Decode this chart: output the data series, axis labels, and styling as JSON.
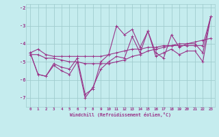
{
  "xlabel": "Windchill (Refroidissement éolien,°C)",
  "background_color": "#c5ecee",
  "grid_color": "#a0ccce",
  "line_color": "#993388",
  "xlim": [
    -0.5,
    23.5
  ],
  "ylim": [
    -7.5,
    -1.8
  ],
  "yticks": [
    -7,
    -6,
    -5,
    -4,
    -3,
    -2
  ],
  "xticks": [
    0,
    1,
    2,
    3,
    4,
    5,
    6,
    7,
    8,
    9,
    10,
    11,
    12,
    13,
    14,
    15,
    16,
    17,
    18,
    19,
    20,
    21,
    22,
    23
  ],
  "series": [
    [
      -4.5,
      -4.3,
      -4.6,
      -4.7,
      -4.7,
      -4.7,
      -4.7,
      -4.7,
      -4.7,
      -4.7,
      -4.6,
      -4.5,
      -4.4,
      -4.3,
      -4.3,
      -4.2,
      -4.2,
      -4.1,
      -4.1,
      -4.1,
      -4.1,
      -4.1,
      -4.1,
      -2.5
    ],
    [
      -4.5,
      -5.7,
      -5.8,
      -5.1,
      -5.3,
      -5.4,
      -4.8,
      -6.8,
      -6.5,
      -5.0,
      -4.6,
      -3.0,
      -3.5,
      -3.2,
      -4.2,
      -3.3,
      -4.5,
      -4.8,
      -3.5,
      -4.2,
      -4.0,
      -4.0,
      -4.5,
      -2.5
    ],
    [
      -4.5,
      -5.7,
      -5.8,
      -5.2,
      -5.5,
      -5.7,
      -5.0,
      -7.0,
      -6.4,
      -5.4,
      -5.0,
      -4.7,
      -4.8,
      -3.6,
      -4.5,
      -3.3,
      -4.7,
      -4.5,
      -4.3,
      -4.6,
      -4.4,
      -4.4,
      -5.0,
      -2.5
    ],
    [
      -4.6,
      -4.6,
      -4.8,
      -4.8,
      -4.9,
      -5.0,
      -5.0,
      -5.1,
      -5.1,
      -5.1,
      -5.1,
      -5.0,
      -4.9,
      -4.7,
      -4.6,
      -4.4,
      -4.3,
      -4.2,
      -4.1,
      -4.0,
      -4.0,
      -3.9,
      -3.8,
      -3.7
    ]
  ]
}
